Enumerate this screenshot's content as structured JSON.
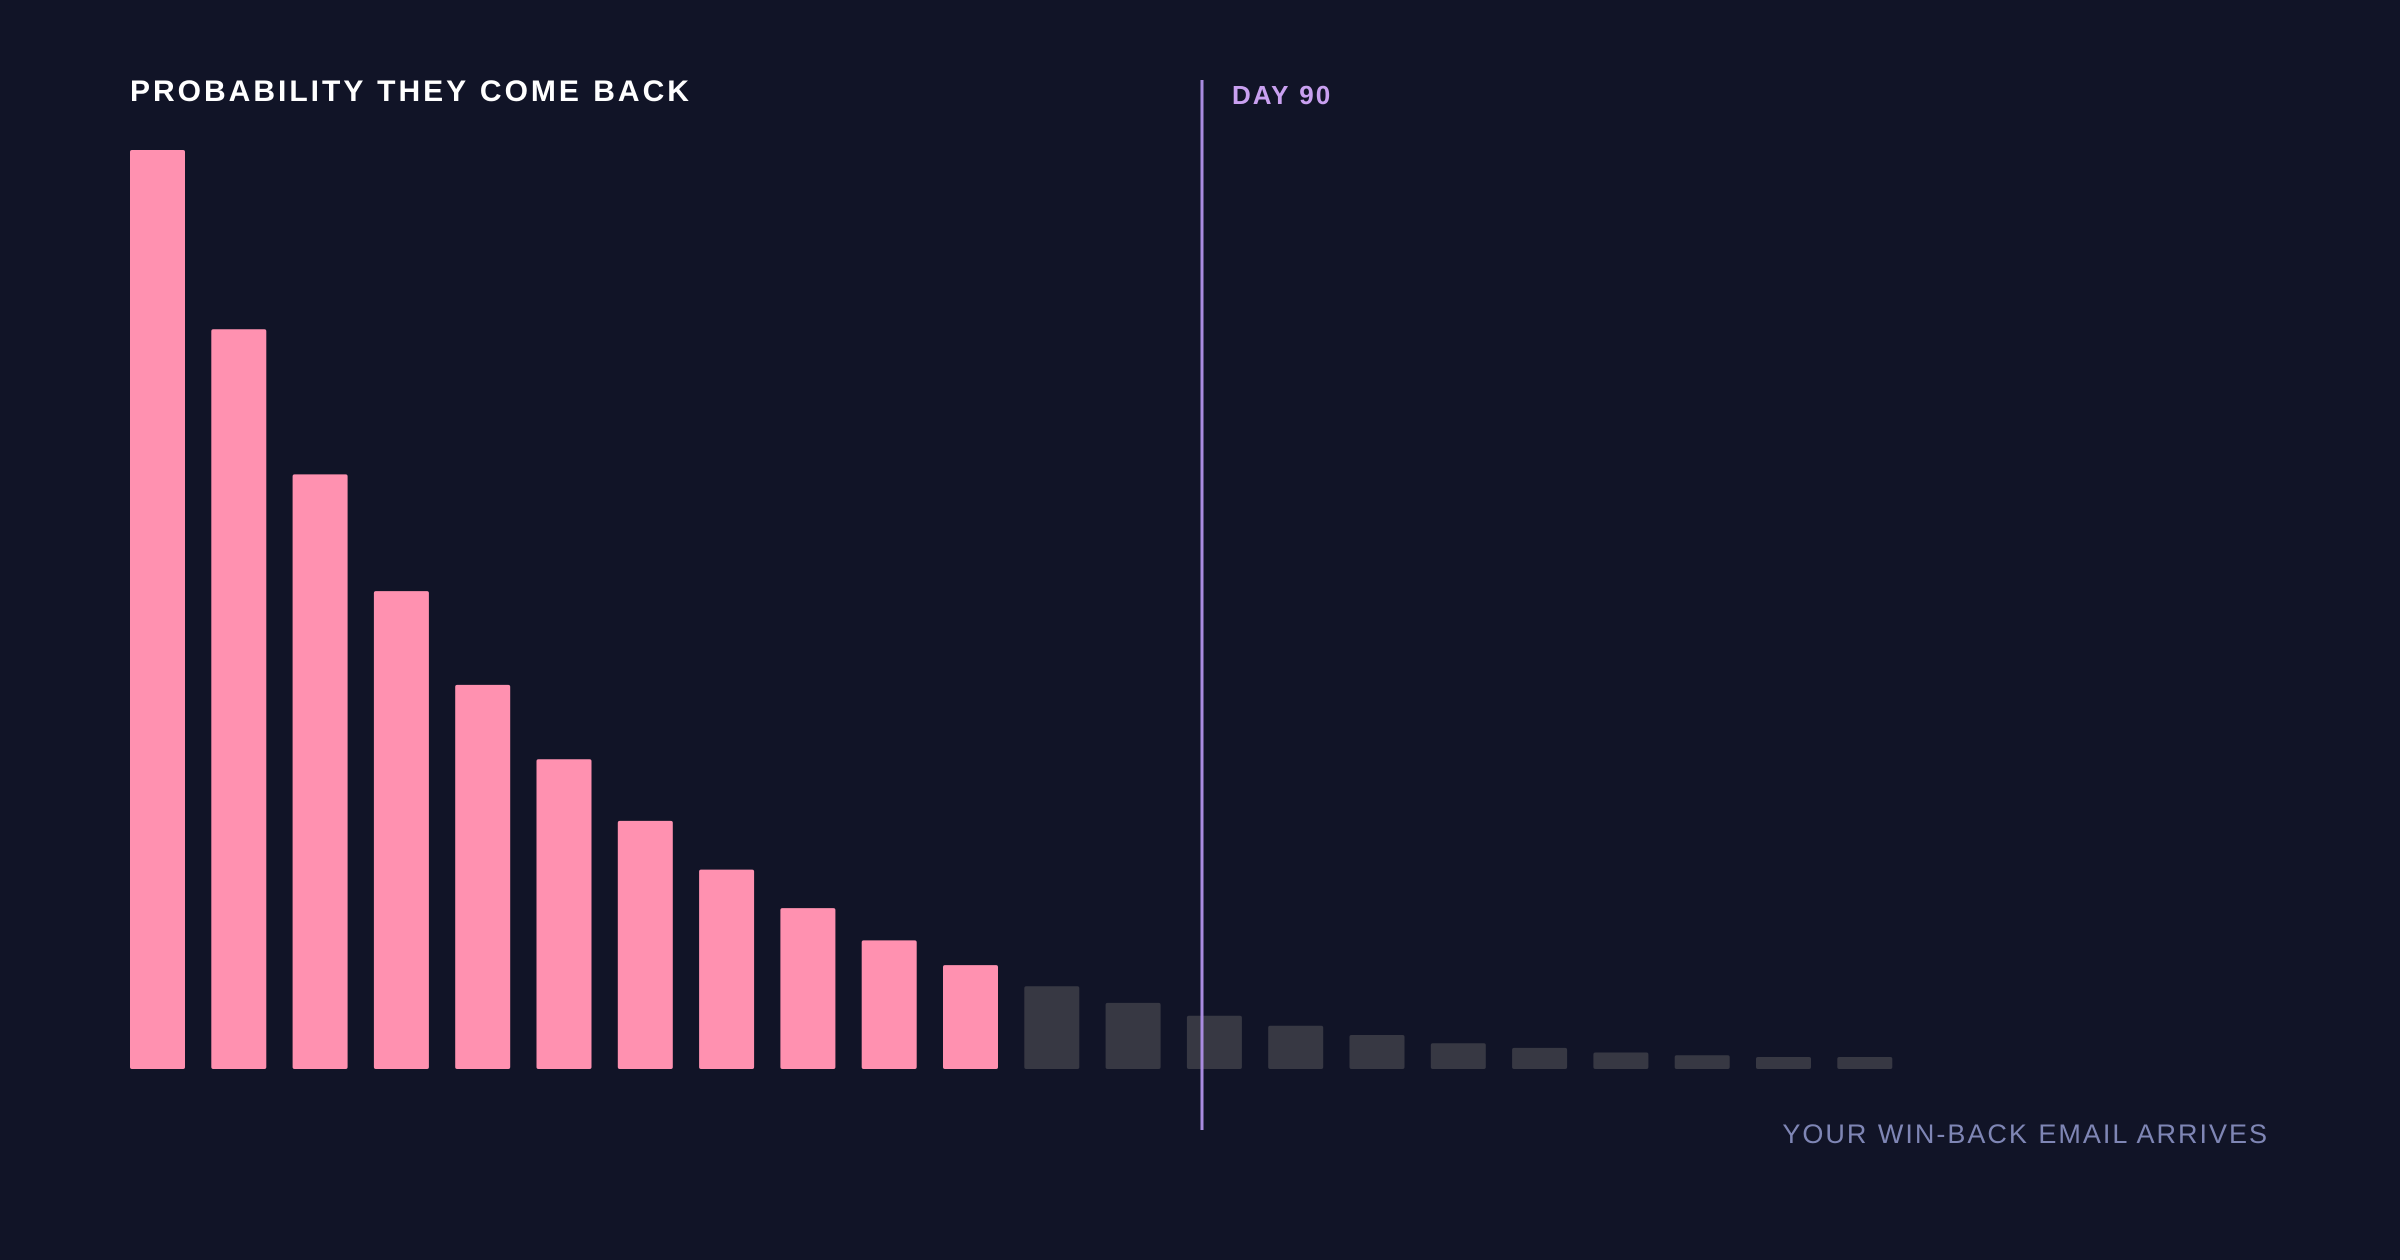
{
  "chart_data": {
    "type": "bar",
    "title": "PROBABILITY THEY COME BACK",
    "marker_label": "DAY 90",
    "annotation": "YOUR WIN-BACK EMAIL ARRIVES",
    "values": [
      100,
      80.5,
      64.7,
      52,
      41.8,
      33.7,
      27,
      21.7,
      17.5,
      14,
      11.3,
      9,
      7.2,
      5.8,
      4.7,
      3.7,
      2.8,
      2.3,
      1.8,
      1.5,
      1.3,
      1.3
    ],
    "colors": [
      "#ff91b0",
      "#ff91b0",
      "#ff91b0",
      "#ff91b0",
      "#ff91b0",
      "#ff91b0",
      "#ff91b0",
      "#ff91b0",
      "#ff91b0",
      "#ff91b0",
      "#ff91b0",
      "#373843",
      "#373843",
      "#373843",
      "#373843",
      "#373843",
      "#373843",
      "#373843",
      "#373843",
      "#373843",
      "#373843",
      "#373843"
    ],
    "marker_color": "#a98be0",
    "ylim": [
      0,
      100
    ]
  }
}
